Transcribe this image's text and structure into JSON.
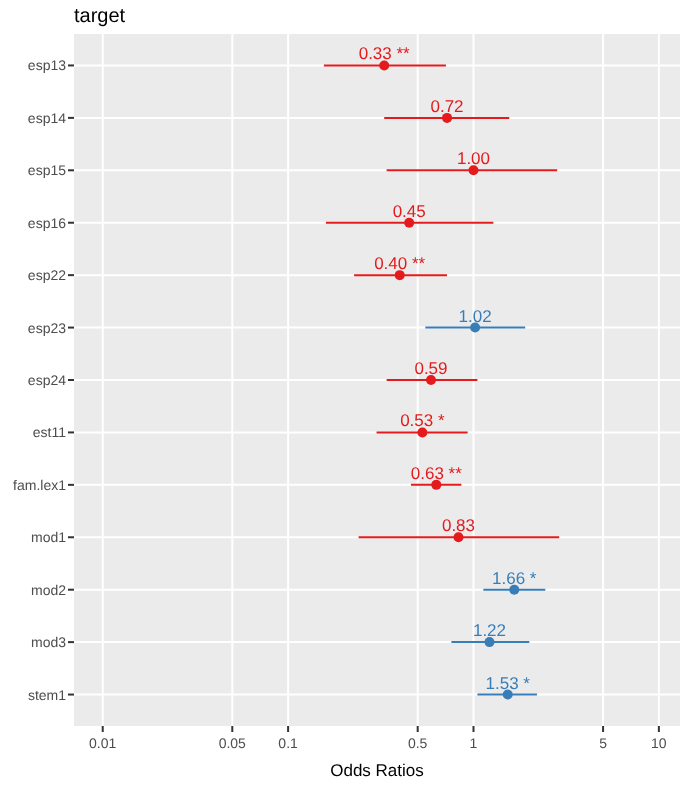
{
  "chart_data": {
    "type": "scatter",
    "title": "target",
    "xlabel": "Odds Ratios",
    "orientation": "horizontal",
    "log": "x",
    "grid": true,
    "marker": "circle",
    "categories": [
      "esp13",
      "esp14",
      "esp15",
      "esp16",
      "esp22",
      "esp23",
      "esp24",
      "est11",
      "fam.lex1",
      "mod1",
      "mod2",
      "mod3",
      "stem1"
    ],
    "values": [
      0.33,
      0.72,
      1.0,
      0.45,
      0.4,
      1.02,
      0.59,
      0.53,
      0.63,
      0.83,
      1.66,
      1.22,
      1.53
    ],
    "errors": [
      [
        0.156,
        0.71
      ],
      [
        0.33,
        1.56
      ],
      [
        0.34,
        2.83
      ],
      [
        0.16,
        1.28
      ],
      [
        0.227,
        0.72
      ],
      [
        0.55,
        1.9
      ],
      [
        0.34,
        1.05
      ],
      [
        0.3,
        0.93
      ],
      [
        0.46,
        0.86
      ],
      [
        0.24,
        2.9
      ],
      [
        1.13,
        2.44
      ],
      [
        0.76,
        2.0
      ],
      [
        1.05,
        2.2
      ]
    ],
    "colors": [
      "#e41a1c",
      "#e41a1c",
      "#e41a1c",
      "#e41a1c",
      "#e41a1c",
      "#377eb8",
      "#e41a1c",
      "#e41a1c",
      "#e41a1c",
      "#e41a1c",
      "#377eb8",
      "#377eb8",
      "#377eb8"
    ],
    "value_labels": [
      "0.33 **",
      "0.72",
      "1.00",
      "0.45",
      "0.40 **",
      "1.02",
      "0.59",
      "0.53 *",
      "0.63 **",
      "0.83",
      "1.66 *",
      "1.22",
      "1.53 *"
    ],
    "xlim": [
      0.007,
      13
    ],
    "xticks": [
      0.01,
      0.05,
      0.1,
      0.5,
      1,
      5,
      10
    ]
  }
}
